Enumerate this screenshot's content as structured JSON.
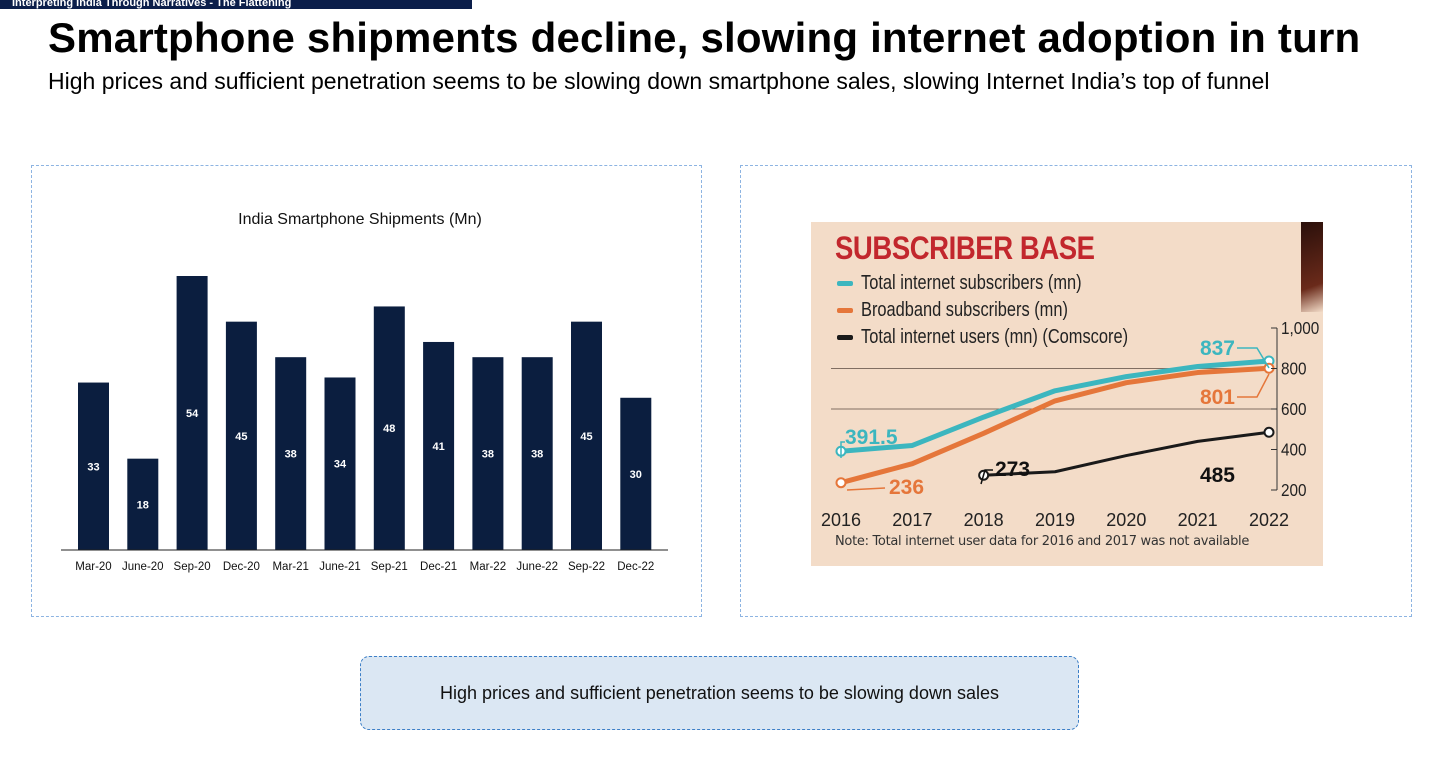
{
  "header": {
    "tab_text": "Interpreting India Through Narratives - The Flattening",
    "title": "Smartphone shipments decline, slowing internet adoption in turn",
    "subtitle": "High prices and sufficient penetration seems to be slowing down smartphone sales, slowing Internet India’s top of funnel"
  },
  "colors": {
    "bar": "#0b1e3f",
    "teal": "#3cb6bf",
    "orange": "#e5763a",
    "black": "#1a1a1a",
    "subscriber_title": "#c2272d"
  },
  "callout": {
    "text": "High prices and sufficient penetration seems to be slowing down sales"
  },
  "chart_data": [
    {
      "type": "bar",
      "title": "India Smartphone Shipments (Mn)",
      "categories": [
        "Mar-20",
        "June-20",
        "Sep-20",
        "Dec-20",
        "Mar-21",
        "June-21",
        "Sep-21",
        "Dec-21",
        "Mar-22",
        "June-22",
        "Sep-22",
        "Dec-22"
      ],
      "values": [
        33,
        18,
        54,
        45,
        38,
        34,
        48,
        41,
        38,
        38,
        45,
        30
      ],
      "data_labels": true,
      "ylim": [
        0,
        54
      ]
    },
    {
      "type": "line",
      "title": "SUBSCRIBER BASE",
      "x": [
        2016,
        2017,
        2018,
        2019,
        2020,
        2021,
        2022
      ],
      "series": [
        {
          "name": "Total internet subscribers (mn)",
          "color": "#3cb6bf",
          "values": [
            391.5,
            420,
            560,
            690,
            760,
            810,
            837
          ]
        },
        {
          "name": "Broadband subscribers (mn)",
          "color": "#e5763a",
          "values": [
            236,
            330,
            480,
            640,
            730,
            780,
            801
          ]
        },
        {
          "name": "Total internet users (mn) (Comscore)",
          "color": "#1a1a1a",
          "values": [
            null,
            null,
            273,
            290,
            370,
            440,
            485
          ]
        }
      ],
      "annotations": [
        "391.5",
        "236",
        "273",
        "837",
        "801",
        "485"
      ],
      "y_ticks": [
        "1,000",
        "800",
        "600",
        "400",
        "200"
      ],
      "ylim": [
        200,
        1000
      ],
      "note": "Note: Total internet user data for 2016 and 2017 was not available"
    }
  ]
}
